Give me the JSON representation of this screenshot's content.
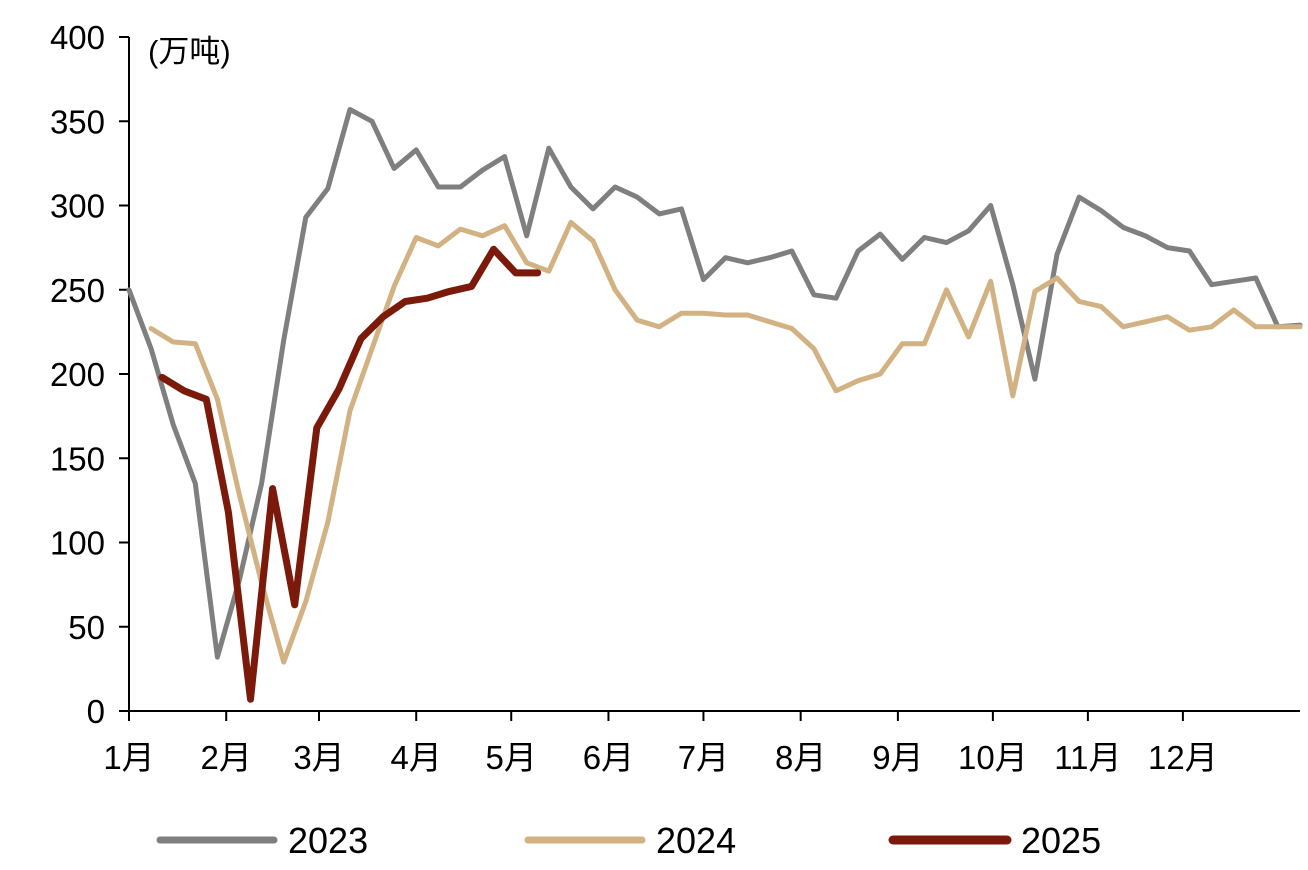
{
  "chart_data": {
    "type": "line",
    "unit_label": "(万吨)",
    "ylim": [
      0,
      400
    ],
    "y_ticks": [
      0,
      50,
      100,
      150,
      200,
      250,
      300,
      350,
      400
    ],
    "months": [
      "1月",
      "2月",
      "3月",
      "4月",
      "5月",
      "6月",
      "7月",
      "8月",
      "9月",
      "10月",
      "11月",
      "12月"
    ],
    "x_domain_weeks": [
      0,
      53
    ],
    "grid": false,
    "legend_position": "bottom",
    "series": [
      {
        "name": "2023",
        "color": "#7f7f7f",
        "x": [
          0,
          1,
          2,
          3,
          4,
          5,
          6,
          7,
          8,
          9,
          10,
          11,
          12,
          13,
          14,
          15,
          16,
          17,
          18,
          19,
          20,
          21,
          22,
          23,
          24,
          25,
          26,
          27,
          28,
          29,
          30,
          31,
          32,
          33,
          34,
          35,
          36,
          37,
          38,
          39,
          40,
          41,
          42,
          43,
          44,
          45,
          46,
          47,
          48,
          49,
          50,
          51,
          52,
          53
        ],
        "values": [
          250,
          215,
          170,
          135,
          32,
          78,
          135,
          220,
          293,
          310,
          357,
          350,
          322,
          333,
          311,
          311,
          321,
          329,
          282,
          334,
          311,
          298,
          311,
          305,
          295,
          298,
          256,
          269,
          266,
          269,
          273,
          247,
          245,
          273,
          283,
          268,
          281,
          278,
          285,
          300,
          253,
          197,
          271,
          305,
          297,
          287,
          282,
          275,
          273,
          253,
          255,
          257,
          228,
          229
        ]
      },
      {
        "name": "2024",
        "color": "#d2b283",
        "x": [
          1,
          2,
          3,
          4,
          5,
          6,
          7,
          8,
          9,
          10,
          11,
          12,
          13,
          14,
          15,
          16,
          17,
          18,
          19,
          20,
          21,
          22,
          23,
          24,
          25,
          26,
          27,
          28,
          29,
          30,
          31,
          32,
          33,
          34,
          35,
          36,
          37,
          38,
          39,
          40,
          41,
          42,
          43,
          44,
          45,
          46,
          47,
          48,
          49,
          50,
          51,
          52,
          53
        ],
        "values": [
          227,
          219,
          218,
          185,
          128,
          76,
          29,
          65,
          112,
          178,
          215,
          252,
          281,
          276,
          286,
          282,
          288,
          266,
          261,
          290,
          279,
          250,
          232,
          228,
          236,
          236,
          235,
          235,
          231,
          227,
          215,
          190,
          196,
          200,
          218,
          218,
          250,
          222,
          255,
          187,
          249,
          257,
          243,
          240,
          228,
          231,
          234,
          226,
          228,
          238,
          228,
          228,
          228
        ]
      },
      {
        "name": "2025",
        "color": "#7b1a0a",
        "x": [
          1.5,
          2.5,
          3.5,
          4.5,
          5.5,
          6.5,
          7.5,
          8.5,
          9.5,
          10.5,
          11.5,
          12.5,
          13.5,
          14.5,
          15.5,
          16.5,
          17.5,
          18.5
        ],
        "values": [
          198,
          190,
          185,
          118,
          7,
          132,
          63,
          168,
          191,
          221,
          234,
          243,
          245,
          249,
          252,
          274,
          260,
          260
        ]
      }
    ]
  }
}
